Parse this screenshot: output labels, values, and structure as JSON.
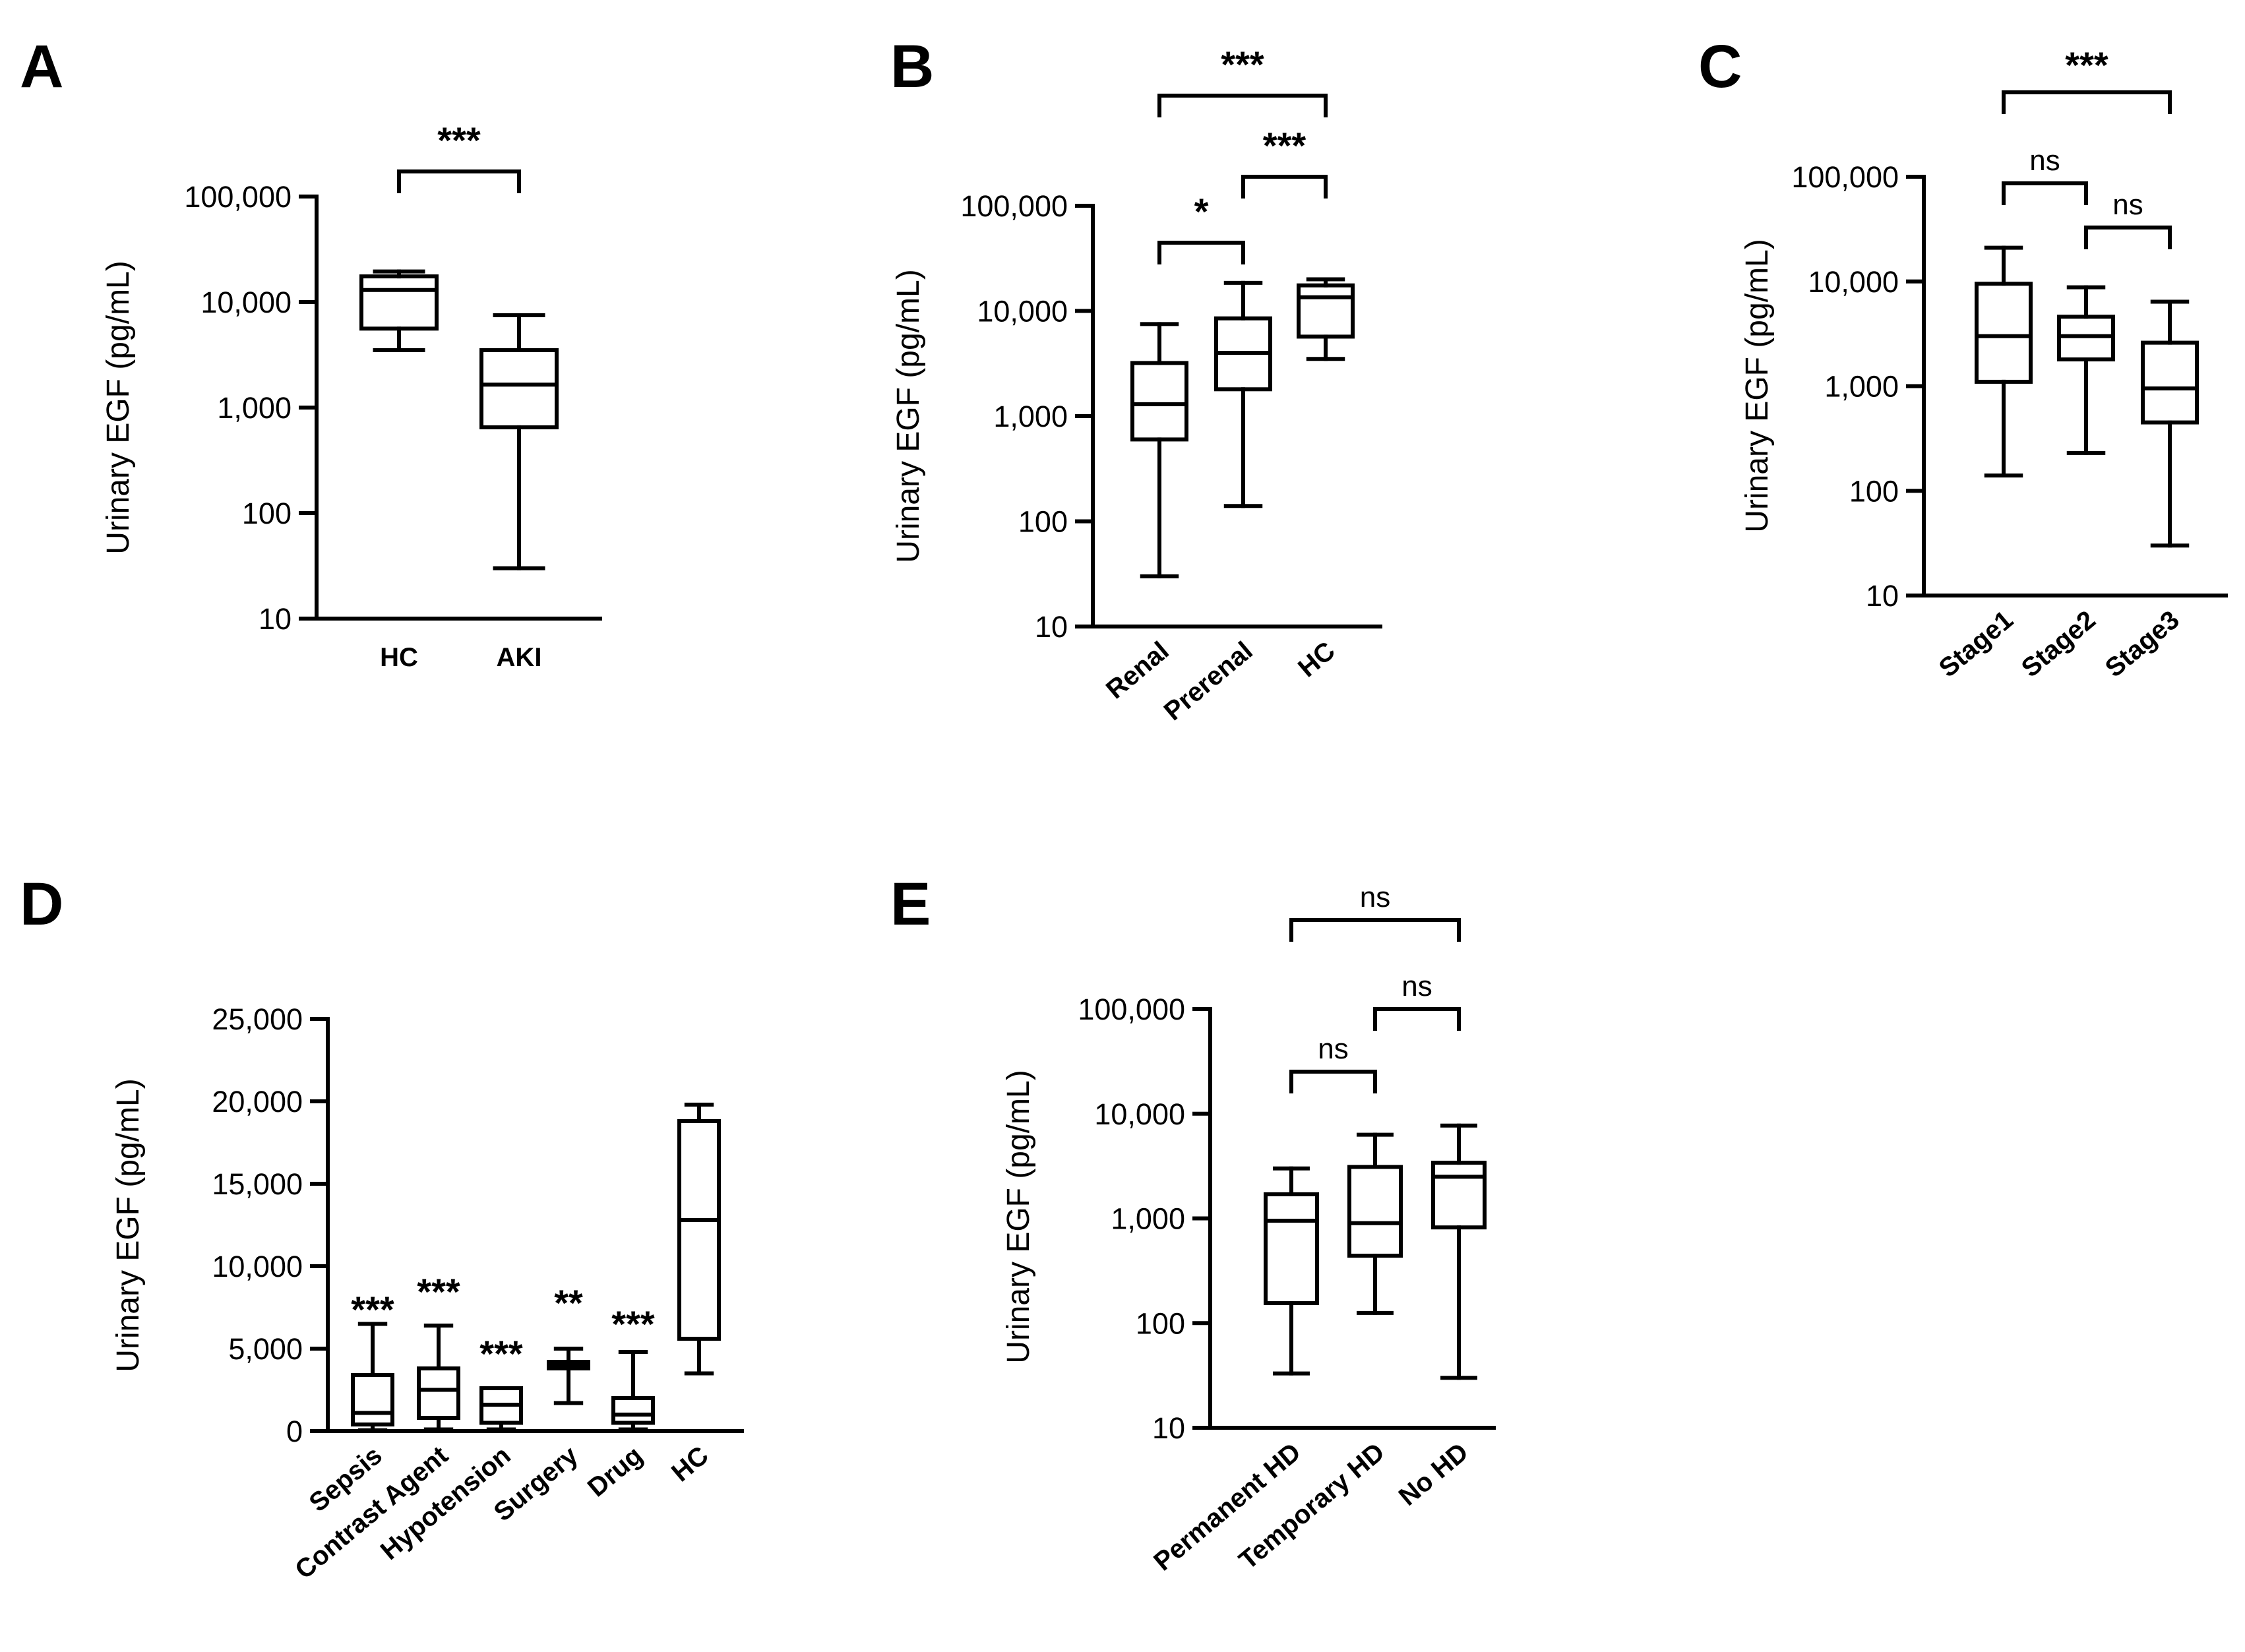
{
  "figure": {
    "y_axis_label": "Urinary EGF (pg/mL)"
  },
  "chart_data": [
    {
      "letter": "A",
      "type": "boxplot",
      "scale": "log",
      "title": "",
      "xlabel": "",
      "ylabel": "Urinary EGF (pg/mL)",
      "ylim": [
        10,
        100000
      ],
      "yticks": [
        10,
        100,
        1000,
        10000,
        100000
      ],
      "ytick_labels": [
        "10",
        "100",
        "1,000",
        "10,000",
        "100,000"
      ],
      "categories": [
        "HC",
        "AKI"
      ],
      "boxes": [
        {
          "min": 3500,
          "q1": 5600,
          "median": 13000,
          "q3": 17500,
          "max": 19500
        },
        {
          "min": 30,
          "q1": 650,
          "median": 1650,
          "q3": 3500,
          "max": 7500
        }
      ],
      "comparisons": [
        {
          "from": 0,
          "to": 1,
          "label": "***"
        }
      ]
    },
    {
      "letter": "B",
      "type": "boxplot",
      "scale": "log",
      "title": "",
      "xlabel": "",
      "ylabel": "Urinary EGF (pg/mL)",
      "ylim": [
        10,
        100000
      ],
      "yticks": [
        10,
        100,
        1000,
        10000,
        100000
      ],
      "ytick_labels": [
        "10",
        "100",
        "1,000",
        "10,000",
        "100,000"
      ],
      "categories": [
        "Renal",
        "Prerenal",
        "HC"
      ],
      "boxes": [
        {
          "min": 30,
          "q1": 600,
          "median": 1300,
          "q3": 3200,
          "max": 7500
        },
        {
          "min": 140,
          "q1": 1800,
          "median": 4000,
          "q3": 8500,
          "max": 18500
        },
        {
          "min": 3500,
          "q1": 5700,
          "median": 13500,
          "q3": 17500,
          "max": 20000
        }
      ],
      "comparisons": [
        {
          "from": 0,
          "to": 1,
          "label": "*"
        },
        {
          "from": 1,
          "to": 2,
          "label": "***"
        },
        {
          "from": 0,
          "to": 2,
          "label": "***"
        }
      ]
    },
    {
      "letter": "C",
      "type": "boxplot",
      "scale": "log",
      "title": "",
      "xlabel": "",
      "ylabel": "Urinary EGF (pg/mL)",
      "ylim": [
        10,
        100000
      ],
      "yticks": [
        10,
        100,
        1000,
        10000,
        100000
      ],
      "ytick_labels": [
        "10",
        "100",
        "1,000",
        "10,000",
        "100,000"
      ],
      "categories": [
        "Stage1",
        "Stage2",
        "Stage3"
      ],
      "boxes": [
        {
          "min": 140,
          "q1": 1100,
          "median": 3000,
          "q3": 9500,
          "max": 21000
        },
        {
          "min": 230,
          "q1": 1800,
          "median": 3000,
          "q3": 4600,
          "max": 8800
        },
        {
          "min": 30,
          "q1": 450,
          "median": 950,
          "q3": 2600,
          "max": 6400
        }
      ],
      "comparisons": [
        {
          "from": 0,
          "to": 1,
          "label": "ns"
        },
        {
          "from": 1,
          "to": 2,
          "label": "ns"
        },
        {
          "from": 0,
          "to": 2,
          "label": "***"
        }
      ]
    },
    {
      "letter": "D",
      "type": "boxplot",
      "scale": "linear",
      "title": "",
      "xlabel": "",
      "ylabel": "Urinary EGF (pg/mL)",
      "ylim": [
        0,
        25000
      ],
      "yticks": [
        0,
        5000,
        10000,
        15000,
        20000,
        25000
      ],
      "ytick_labels": [
        "0",
        "5,000",
        "10,000",
        "15,000",
        "20,000",
        "25,000"
      ],
      "categories": [
        "Sepsis",
        "Contrast Agent",
        "Hypotension",
        "Surgery",
        "Drug",
        "HC"
      ],
      "boxes": [
        {
          "min": 50,
          "q1": 400,
          "median": 1100,
          "q3": 3400,
          "max": 6500
        },
        {
          "min": 100,
          "q1": 800,
          "median": 2500,
          "q3": 3800,
          "max": 6400
        },
        {
          "min": 100,
          "q1": 500,
          "median": 1600,
          "q3": 2600,
          "max": 2600
        },
        {
          "min": 1700,
          "q1": 3800,
          "median": 4000,
          "q3": 4200,
          "max": 5000
        },
        {
          "min": 100,
          "q1": 500,
          "median": 1000,
          "q3": 2000,
          "max": 4800
        },
        {
          "min": 3500,
          "q1": 5600,
          "median": 12800,
          "q3": 18800,
          "max": 19800
        }
      ],
      "annotations": [
        "***",
        "***",
        "***",
        "**",
        "***",
        ""
      ]
    },
    {
      "letter": "E",
      "type": "boxplot",
      "scale": "log",
      "title": "",
      "xlabel": "",
      "ylabel": "Urinary EGF (pg/mL)",
      "ylim": [
        10,
        100000
      ],
      "yticks": [
        10,
        100,
        1000,
        10000,
        100000
      ],
      "ytick_labels": [
        "10",
        "100",
        "1,000",
        "10,000",
        "100,000"
      ],
      "categories": [
        "Permanent HD",
        "Temporary HD",
        "No HD"
      ],
      "boxes": [
        {
          "min": 33,
          "q1": 155,
          "median": 950,
          "q3": 1700,
          "max": 3000
        },
        {
          "min": 125,
          "q1": 440,
          "median": 900,
          "q3": 3100,
          "max": 6300
        },
        {
          "min": 30,
          "q1": 820,
          "median": 2500,
          "q3": 3400,
          "max": 7700
        }
      ],
      "comparisons": [
        {
          "from": 0,
          "to": 1,
          "label": "ns"
        },
        {
          "from": 1,
          "to": 2,
          "label": "ns"
        },
        {
          "from": 0,
          "to": 2,
          "label": "ns"
        }
      ]
    }
  ]
}
